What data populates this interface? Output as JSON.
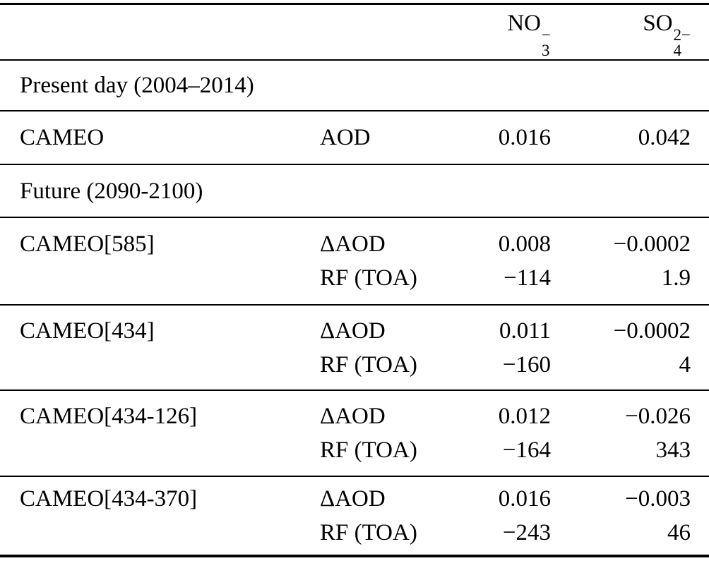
{
  "header": {
    "no3": {
      "base": "NO",
      "sup": "−",
      "sub": "3"
    },
    "so4": {
      "base": "SO",
      "sup": "2−",
      "sub": "4"
    }
  },
  "sections": [
    {
      "title": "Present day (2004–2014)",
      "groups": [
        {
          "label": "CAMEO",
          "rows": [
            {
              "metric": "AOD",
              "no3": "0.016",
              "so4": "0.042"
            }
          ]
        }
      ]
    },
    {
      "title": "Future (2090-2100)",
      "groups": [
        {
          "label": "CAMEO[585]",
          "rows": [
            {
              "metric": "ΔAOD",
              "no3": "0.008",
              "so4": "−0.0002"
            },
            {
              "metric": "RF (TOA)",
              "no3": "−114",
              "so4": "1.9"
            }
          ]
        },
        {
          "label": "CAMEO[434]",
          "rows": [
            {
              "metric": "ΔAOD",
              "no3": "0.011",
              "so4": "−0.0002"
            },
            {
              "metric": "RF (TOA)",
              "no3": "−160",
              "so4": "4"
            }
          ]
        },
        {
          "label": "CAMEO[434-126]",
          "rows": [
            {
              "metric": "ΔAOD",
              "no3": "0.012",
              "so4": "−0.026"
            },
            {
              "metric": "RF (TOA)",
              "no3": "−164",
              "so4": "343"
            }
          ]
        },
        {
          "label": "CAMEO[434-370]",
          "rows": [
            {
              "metric": "ΔAOD",
              "no3": "0.016",
              "so4": "−0.003"
            },
            {
              "metric": "RF (TOA)",
              "no3": "−243",
              "so4": "46"
            }
          ]
        }
      ]
    }
  ],
  "colors": {
    "background": "#ffffff",
    "text": "#000000",
    "rule": "#000000"
  }
}
